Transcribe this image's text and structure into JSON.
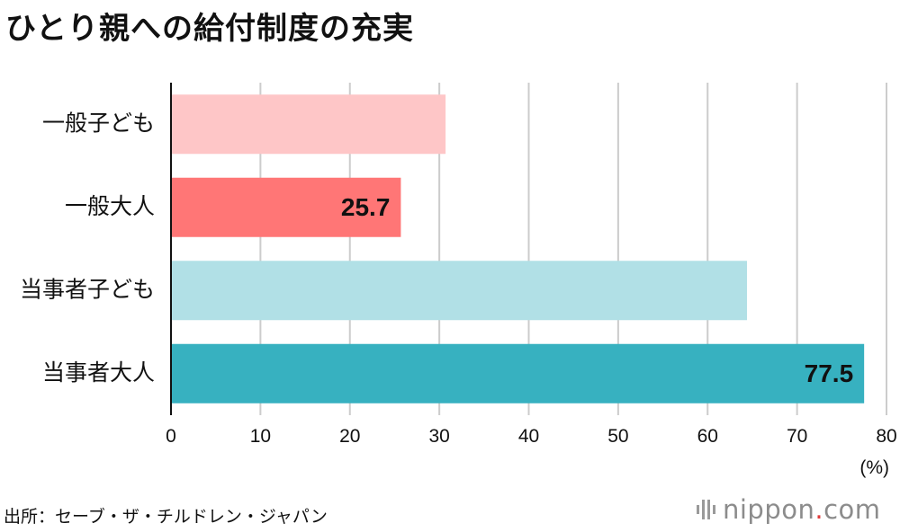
{
  "title": "ひとり親への給付制度の充実",
  "source": "出所：セーブ・ザ・チルドレン・ジャパン",
  "logo": {
    "name": "nippon",
    "dot": ".",
    "suffix": "com",
    "dot_color": "#e03a3a"
  },
  "chart_data": {
    "type": "bar",
    "orientation": "horizontal",
    "title": "ひとり親への給付制度の充実",
    "unit": "(%)",
    "xlim": [
      0,
      80
    ],
    "ticks": [
      0,
      10,
      20,
      30,
      40,
      50,
      60,
      70,
      80
    ],
    "grid": true,
    "categories": [
      "一般子ども",
      "一般大人",
      "当事者子ども",
      "当事者大人"
    ],
    "values": [
      30.7,
      25.7,
      64.4,
      77.5
    ],
    "labels": [
      "",
      "25.7",
      "",
      "77.5"
    ],
    "colors": [
      "#fec6c7",
      "#ff7676",
      "#b1e0e6",
      "#37b1c0"
    ]
  }
}
